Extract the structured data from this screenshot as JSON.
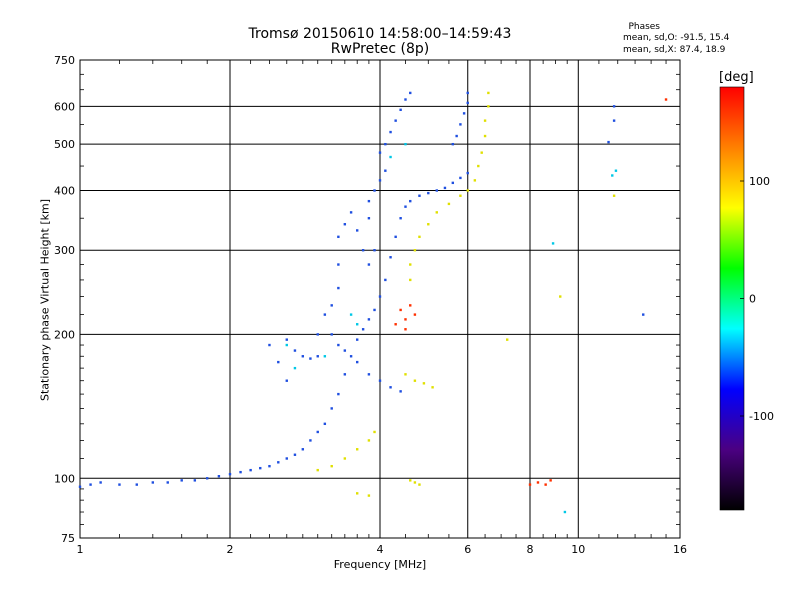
{
  "chart_data": {
    "type": "scatter",
    "title": "Tromsø 20150610 14:58:00–14:59:43",
    "subtitle": "RwPretec (8p)",
    "xlabel": "Frequency [MHz]",
    "ylabel": "Stationary phase Virtual Height [km]",
    "x_scale": "log",
    "y_scale": "log",
    "xlim": [
      1,
      16
    ],
    "ylim": [
      75,
      750
    ],
    "x_ticks": [
      1,
      2,
      4,
      6,
      8,
      10,
      16
    ],
    "y_ticks": [
      75,
      100,
      200,
      300,
      400,
      500,
      600,
      750
    ],
    "grid": true,
    "phases_header": "Phases",
    "phases_o": "mean, sd,O: -91.5, 15.4",
    "phases_x": "mean, sd,X: 87.4, 18.9",
    "colorbar": {
      "unit": "[deg]",
      "range": [
        -180,
        180
      ],
      "ticks": [
        100,
        0,
        -100
      ],
      "colors": [
        "#000000",
        "#4b0082",
        "#0000ff",
        "#00ffff",
        "#00ff00",
        "#ffff00",
        "#ff8000",
        "#ff0000"
      ]
    },
    "series": [
      {
        "color": "#1f4fe0",
        "points": [
          [
            1.0,
            96
          ],
          [
            1.05,
            97
          ],
          [
            1.1,
            98
          ],
          [
            1.2,
            97
          ],
          [
            1.3,
            97
          ],
          [
            1.4,
            98
          ],
          [
            1.5,
            98
          ],
          [
            1.6,
            99
          ],
          [
            1.7,
            99
          ],
          [
            1.8,
            100
          ],
          [
            1.9,
            101
          ],
          [
            2.0,
            102
          ],
          [
            2.1,
            103
          ],
          [
            2.2,
            104
          ],
          [
            2.3,
            105
          ],
          [
            2.4,
            106
          ],
          [
            2.5,
            108
          ],
          [
            2.6,
            110
          ],
          [
            2.7,
            112
          ],
          [
            2.8,
            115
          ],
          [
            2.9,
            120
          ],
          [
            3.0,
            125
          ],
          [
            3.1,
            130
          ],
          [
            3.2,
            140
          ],
          [
            3.3,
            150
          ],
          [
            3.4,
            165
          ],
          [
            3.5,
            180
          ],
          [
            3.6,
            195
          ],
          [
            3.7,
            205
          ],
          [
            3.8,
            215
          ],
          [
            3.9,
            225
          ],
          [
            4.0,
            240
          ],
          [
            4.1,
            260
          ],
          [
            4.2,
            290
          ],
          [
            4.3,
            320
          ],
          [
            4.4,
            350
          ],
          [
            4.5,
            370
          ],
          [
            4.6,
            380
          ],
          [
            4.8,
            390
          ],
          [
            5.0,
            395
          ],
          [
            5.2,
            400
          ],
          [
            5.4,
            405
          ],
          [
            5.6,
            415
          ],
          [
            5.8,
            425
          ],
          [
            6.0,
            435
          ],
          [
            4.0,
            480
          ],
          [
            4.1,
            500
          ],
          [
            4.2,
            530
          ],
          [
            4.3,
            560
          ],
          [
            4.4,
            590
          ],
          [
            4.5,
            620
          ],
          [
            4.6,
            640
          ],
          [
            5.6,
            500
          ],
          [
            5.7,
            520
          ],
          [
            5.8,
            550
          ],
          [
            5.9,
            580
          ],
          [
            6.0,
            610
          ],
          [
            6.0,
            640
          ],
          [
            3.3,
            250
          ],
          [
            3.3,
            280
          ],
          [
            3.3,
            320
          ],
          [
            3.4,
            340
          ],
          [
            3.5,
            360
          ],
          [
            3.6,
            330
          ],
          [
            3.7,
            300
          ],
          [
            3.8,
            280
          ],
          [
            3.2,
            200
          ],
          [
            3.3,
            190
          ],
          [
            3.4,
            185
          ],
          [
            3.6,
            175
          ],
          [
            3.8,
            165
          ],
          [
            4.0,
            160
          ],
          [
            4.2,
            155
          ],
          [
            4.4,
            152
          ],
          [
            3.0,
            180
          ],
          [
            3.0,
            200
          ],
          [
            3.1,
            220
          ],
          [
            3.2,
            230
          ],
          [
            2.4,
            190
          ],
          [
            2.5,
            175
          ],
          [
            2.6,
            160
          ],
          [
            3.8,
            380
          ],
          [
            3.9,
            400
          ],
          [
            4.0,
            420
          ],
          [
            4.1,
            440
          ],
          [
            3.8,
            350
          ],
          [
            3.9,
            300
          ],
          [
            2.6,
            195
          ],
          [
            2.7,
            185
          ],
          [
            2.8,
            180
          ],
          [
            2.9,
            178
          ],
          [
            11.8,
            600
          ],
          [
            11.8,
            560
          ],
          [
            11.5,
            505
          ],
          [
            13.5,
            220
          ]
        ]
      },
      {
        "color": "#e0e000",
        "points": [
          [
            6.6,
            640
          ],
          [
            6.6,
            600
          ],
          [
            6.5,
            560
          ],
          [
            6.5,
            520
          ],
          [
            6.4,
            480
          ],
          [
            6.3,
            450
          ],
          [
            6.2,
            420
          ],
          [
            6.0,
            400
          ],
          [
            5.8,
            390
          ],
          [
            5.5,
            375
          ],
          [
            5.2,
            360
          ],
          [
            5.0,
            340
          ],
          [
            4.8,
            320
          ],
          [
            4.7,
            300
          ],
          [
            4.6,
            280
          ],
          [
            4.6,
            260
          ],
          [
            4.5,
            165
          ],
          [
            4.7,
            160
          ],
          [
            4.9,
            158
          ],
          [
            5.1,
            155
          ],
          [
            3.9,
            125
          ],
          [
            3.8,
            120
          ],
          [
            3.6,
            115
          ],
          [
            3.4,
            110
          ],
          [
            3.2,
            106
          ],
          [
            3.0,
            104
          ],
          [
            4.6,
            99
          ],
          [
            4.7,
            98
          ],
          [
            4.8,
            97
          ],
          [
            3.6,
            93
          ],
          [
            3.8,
            92
          ],
          [
            7.2,
            195
          ],
          [
            9.2,
            240
          ],
          [
            11.8,
            390
          ]
        ]
      },
      {
        "color": "#ff3000",
        "points": [
          [
            4.4,
            225
          ],
          [
            4.5,
            215
          ],
          [
            4.5,
            205
          ],
          [
            4.6,
            230
          ],
          [
            4.3,
            210
          ],
          [
            4.7,
            220
          ],
          [
            8.0,
            97
          ],
          [
            8.3,
            98
          ],
          [
            8.6,
            97
          ],
          [
            8.8,
            99
          ],
          [
            15.0,
            620
          ]
        ]
      },
      {
        "color": "#00c8e6",
        "points": [
          [
            3.5,
            220
          ],
          [
            3.6,
            210
          ],
          [
            2.6,
            190
          ],
          [
            2.7,
            170
          ],
          [
            4.5,
            500
          ],
          [
            4.2,
            470
          ],
          [
            11.7,
            430
          ],
          [
            11.9,
            440
          ],
          [
            8.9,
            310
          ],
          [
            3.1,
            180
          ],
          [
            9.4,
            85
          ]
        ]
      }
    ]
  }
}
